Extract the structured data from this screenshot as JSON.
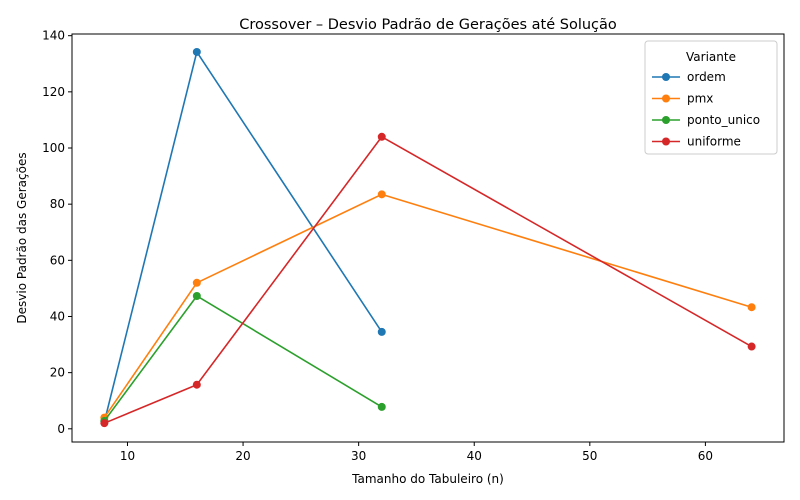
{
  "chart_data": {
    "type": "line",
    "title": "Crossover – Desvio Padrão de Gerações até Solução",
    "xlabel": "Tamanho do Tabuleiro (n)",
    "ylabel": "Desvio Padrão das Gerações",
    "xlim": [
      5.2,
      66.8
    ],
    "ylim": [
      -4.7,
      140.6
    ],
    "xticks": [
      10,
      20,
      30,
      40,
      50,
      60
    ],
    "yticks": [
      0,
      20,
      40,
      60,
      80,
      100,
      120,
      140
    ],
    "grid": false,
    "legend": {
      "title": "Variante",
      "placement": "top-right"
    },
    "series": [
      {
        "name": "ordem",
        "color": "#1f77b4",
        "points": [
          [
            8,
            2.5
          ],
          [
            16,
            134.2
          ],
          [
            32,
            34.5
          ]
        ]
      },
      {
        "name": "pmx",
        "color": "#ff7f0e",
        "points": [
          [
            8,
            4.0
          ],
          [
            16,
            52.0
          ],
          [
            32,
            83.5
          ],
          [
            64,
            43.3
          ]
        ]
      },
      {
        "name": "ponto_unico",
        "color": "#2ca02c",
        "points": [
          [
            8,
            2.8
          ],
          [
            16,
            47.3
          ],
          [
            32,
            7.8
          ]
        ]
      },
      {
        "name": "uniforme",
        "color": "#d62728",
        "points": [
          [
            8,
            2.0
          ],
          [
            16,
            15.7
          ],
          [
            32,
            104.0
          ],
          [
            64,
            29.3
          ]
        ]
      }
    ]
  }
}
